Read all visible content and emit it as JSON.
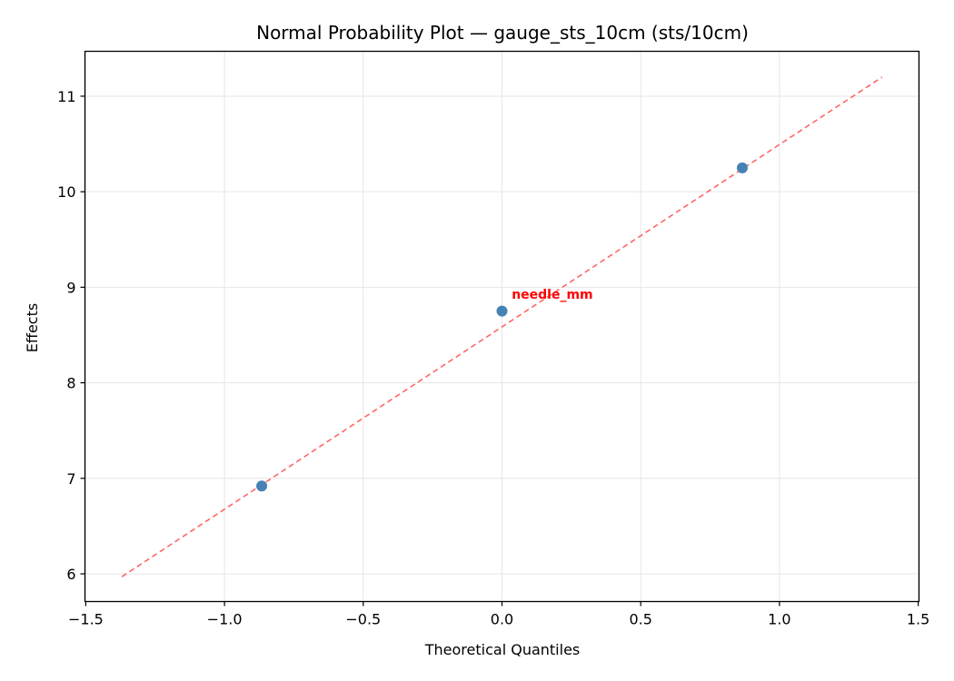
{
  "chart_data": {
    "type": "scatter",
    "title": "Normal Probability Plot — gauge_sts_10cm (sts/10cm)",
    "xlabel": "Theoretical Quantiles",
    "ylabel": "Effects",
    "xlim": [
      -1.503,
      1.503
    ],
    "ylim": [
      5.71,
      11.47
    ],
    "xticks": [
      -1.5,
      -1.0,
      -0.5,
      0.0,
      0.5,
      1.0,
      1.5
    ],
    "xtick_labels": [
      "−1.5",
      "−1.0",
      "−0.5",
      "0.0",
      "0.5",
      "1.0",
      "1.5"
    ],
    "yticks": [
      6,
      7,
      8,
      9,
      10,
      11
    ],
    "ytick_labels": [
      "6",
      "7",
      "8",
      "9",
      "10",
      "11"
    ],
    "grid": true,
    "legend": null,
    "series": [
      {
        "name": "effects",
        "kind": "scatter",
        "color": "#4682b4",
        "x": [
          -0.866,
          0.0,
          0.866
        ],
        "y": [
          6.92,
          8.75,
          10.25
        ]
      },
      {
        "name": "reference-line",
        "kind": "line",
        "style": "dashed",
        "color": "#ff6666",
        "x": [
          -1.37,
          1.37
        ],
        "y": [
          5.97,
          11.2
        ]
      }
    ],
    "annotations": [
      {
        "text": "needle_mm",
        "x": 0.035,
        "y": 8.9,
        "color": "#ff0000",
        "bold": true
      }
    ]
  }
}
